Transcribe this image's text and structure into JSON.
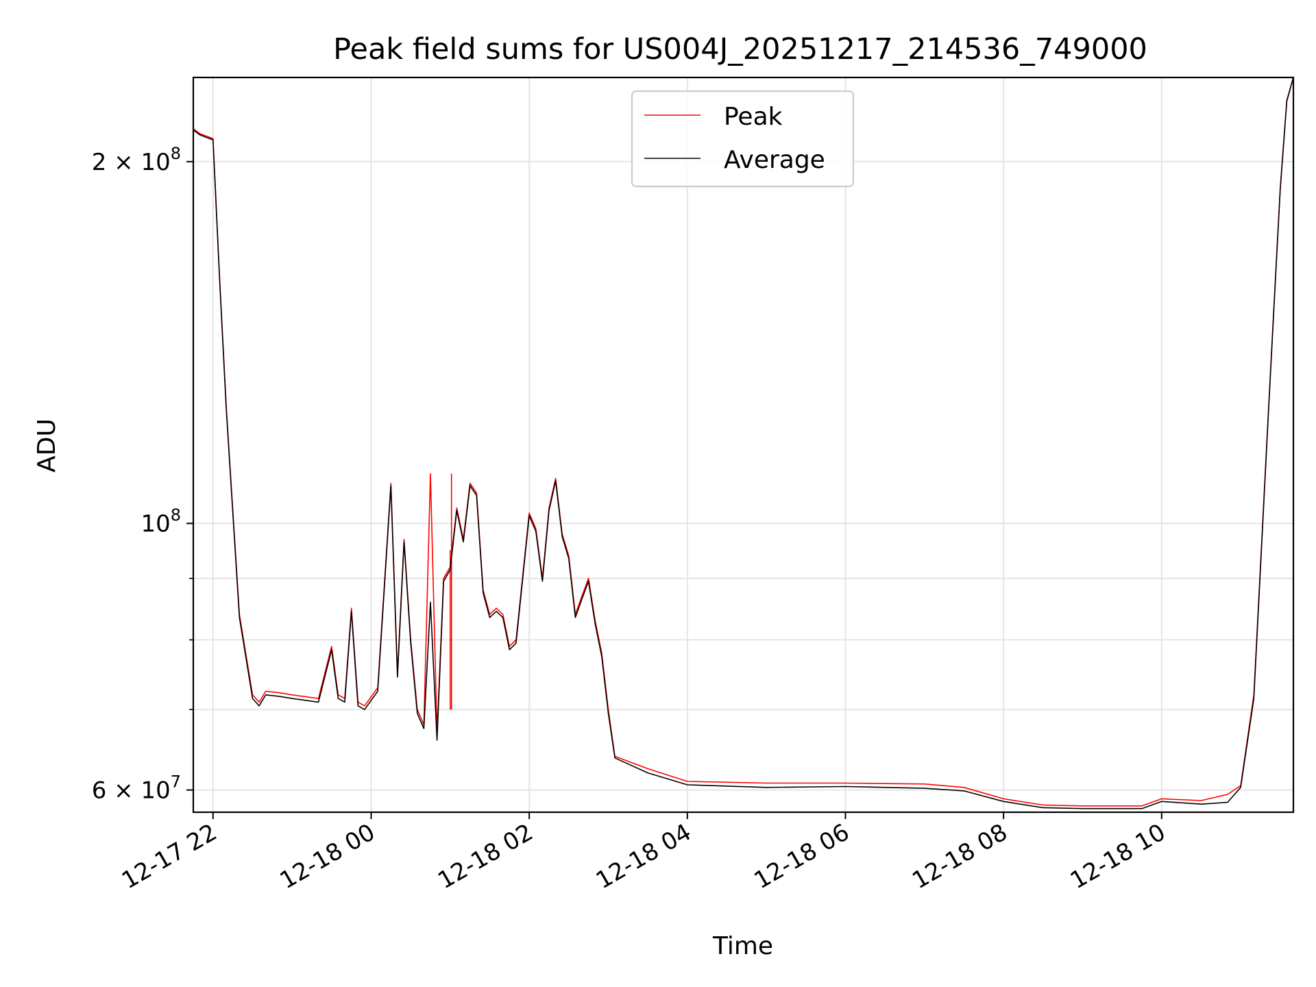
{
  "chart_data": {
    "type": "line",
    "title": "Peak field sums for US004J_20251217_214536_749000",
    "xlabel": "Time",
    "ylabel": "ADU",
    "yscale": "log",
    "ylim": [
      57500000,
      235000000
    ],
    "xlim_hours": [
      "12-17 21:45",
      "12-18 11:40"
    ],
    "grid": true,
    "legend_position": "upper-center",
    "x_ticks": [
      {
        "value": "2025-12-17 22:00",
        "label": "12-17 22"
      },
      {
        "value": "2025-12-18 00:00",
        "label": "12-18 00"
      },
      {
        "value": "2025-12-18 02:00",
        "label": "12-18 02"
      },
      {
        "value": "2025-12-18 04:00",
        "label": "12-18 04"
      },
      {
        "value": "2025-12-18 06:00",
        "label": "12-18 06"
      },
      {
        "value": "2025-12-18 08:00",
        "label": "12-18 08"
      },
      {
        "value": "2025-12-18 10:00",
        "label": "12-18 10"
      }
    ],
    "y_major_ticks": [
      {
        "value": 60000000,
        "base": "6 × 10",
        "exp": "7"
      },
      {
        "value": 100000000,
        "base": "10",
        "exp": "8"
      },
      {
        "value": 200000000,
        "base": "2 × 10",
        "exp": "8"
      }
    ],
    "y_minor_ticks": [
      70000000,
      80000000,
      90000000
    ],
    "series": [
      {
        "name": "Peak",
        "color": "#ff0000",
        "x": [
          "2025-12-17 21:45",
          "2025-12-17 21:50",
          "2025-12-17 22:00",
          "2025-12-17 22:05",
          "2025-12-17 22:10",
          "2025-12-17 22:20",
          "2025-12-17 22:30",
          "2025-12-17 22:35",
          "2025-12-17 22:40",
          "2025-12-17 22:50",
          "2025-12-17 23:00",
          "2025-12-17 23:20",
          "2025-12-17 23:30",
          "2025-12-17 23:35",
          "2025-12-17 23:40",
          "2025-12-17 23:45",
          "2025-12-17 23:50",
          "2025-12-17 23:55",
          "2025-12-18 00:05",
          "2025-12-18 00:15",
          "2025-12-18 00:20",
          "2025-12-18 00:25",
          "2025-12-18 00:30",
          "2025-12-18 00:35",
          "2025-12-18 00:40",
          "2025-12-18 00:45",
          "2025-12-18 00:50",
          "2025-12-18 00:55",
          "2025-12-18 01:00",
          "2025-12-18 01:05",
          "2025-12-18 01:10",
          "2025-12-18 01:15",
          "2025-12-18 01:20",
          "2025-12-18 01:25",
          "2025-12-18 01:30",
          "2025-12-18 01:35",
          "2025-12-18 01:40",
          "2025-12-18 01:45",
          "2025-12-18 01:50",
          "2025-12-18 02:00",
          "2025-12-18 02:05",
          "2025-12-18 02:10",
          "2025-12-18 02:15",
          "2025-12-18 02:20",
          "2025-12-18 02:25",
          "2025-12-18 02:30",
          "2025-12-18 02:35",
          "2025-12-18 02:40",
          "2025-12-18 02:45",
          "2025-12-18 02:50",
          "2025-12-18 02:55",
          "2025-12-18 03:00",
          "2025-12-18 03:05",
          "2025-12-18 03:30",
          "2025-12-18 04:00",
          "2025-12-18 05:00",
          "2025-12-18 06:00",
          "2025-12-18 07:00",
          "2025-12-18 07:30",
          "2025-12-18 08:00",
          "2025-12-18 08:30",
          "2025-12-18 09:00",
          "2025-12-18 09:45",
          "2025-12-18 10:00",
          "2025-12-18 10:30",
          "2025-12-18 10:50",
          "2025-12-18 11:00",
          "2025-12-18 11:10",
          "2025-12-18 11:20",
          "2025-12-18 11:25",
          "2025-12-18 11:30",
          "2025-12-18 11:35",
          "2025-12-18 11:40"
        ],
        "values": [
          213000000,
          211000000,
          209000000,
          160000000,
          125000000,
          84000000,
          72000000,
          71000000,
          72500000,
          72300000,
          72000000,
          71500000,
          79000000,
          72000000,
          71500000,
          85000000,
          71000000,
          70500000,
          73000000,
          108000000,
          75000000,
          97000000,
          80000000,
          70000000,
          68000000,
          110000000,
          67000000,
          90000000,
          92000000,
          103000000,
          97000000,
          108000000,
          106000000,
          88000000,
          84000000,
          85000000,
          84000000,
          79000000,
          80000000,
          102000000,
          99000000,
          90000000,
          103000000,
          109000000,
          98000000,
          94000000,
          84000000,
          87000000,
          90000000,
          83000000,
          78000000,
          70000000,
          64000000,
          62500000,
          61000000,
          60800000,
          60800000,
          60700000,
          60300000,
          59000000,
          58300000,
          58200000,
          58200000,
          59000000,
          58800000,
          59500000,
          60500000,
          72000000,
          118000000,
          150000000,
          190000000,
          225000000,
          235000000
        ],
        "spikes": [
          {
            "x": "2025-12-18 01:01",
            "value": 110000000
          },
          {
            "x": "2025-12-18 01:00",
            "value": 95000000
          }
        ]
      },
      {
        "name": "Average",
        "color": "#000000",
        "x": [
          "2025-12-17 21:45",
          "2025-12-17 21:50",
          "2025-12-17 22:00",
          "2025-12-17 22:05",
          "2025-12-17 22:10",
          "2025-12-17 22:20",
          "2025-12-17 22:30",
          "2025-12-17 22:35",
          "2025-12-17 22:40",
          "2025-12-17 22:50",
          "2025-12-17 23:00",
          "2025-12-17 23:20",
          "2025-12-17 23:30",
          "2025-12-17 23:35",
          "2025-12-17 23:40",
          "2025-12-17 23:45",
          "2025-12-17 23:50",
          "2025-12-17 23:55",
          "2025-12-18 00:05",
          "2025-12-18 00:15",
          "2025-12-18 00:20",
          "2025-12-18 00:25",
          "2025-12-18 00:30",
          "2025-12-18 00:35",
          "2025-12-18 00:40",
          "2025-12-18 00:45",
          "2025-12-18 00:50",
          "2025-12-18 00:55",
          "2025-12-18 01:00",
          "2025-12-18 01:05",
          "2025-12-18 01:10",
          "2025-12-18 01:15",
          "2025-12-18 01:20",
          "2025-12-18 01:25",
          "2025-12-18 01:30",
          "2025-12-18 01:35",
          "2025-12-18 01:40",
          "2025-12-18 01:45",
          "2025-12-18 01:50",
          "2025-12-18 02:00",
          "2025-12-18 02:05",
          "2025-12-18 02:10",
          "2025-12-18 02:15",
          "2025-12-18 02:20",
          "2025-12-18 02:25",
          "2025-12-18 02:30",
          "2025-12-18 02:35",
          "2025-12-18 02:40",
          "2025-12-18 02:45",
          "2025-12-18 02:50",
          "2025-12-18 02:55",
          "2025-12-18 03:00",
          "2025-12-18 03:05",
          "2025-12-18 03:30",
          "2025-12-18 04:00",
          "2025-12-18 05:00",
          "2025-12-18 06:00",
          "2025-12-18 07:00",
          "2025-12-18 07:30",
          "2025-12-18 08:00",
          "2025-12-18 08:30",
          "2025-12-18 09:00",
          "2025-12-18 09:45",
          "2025-12-18 10:00",
          "2025-12-18 10:30",
          "2025-12-18 10:50",
          "2025-12-18 11:00",
          "2025-12-18 11:10",
          "2025-12-18 11:20",
          "2025-12-18 11:25",
          "2025-12-18 11:30",
          "2025-12-18 11:35",
          "2025-12-18 11:40"
        ],
        "values": [
          212500000,
          210500000,
          208500000,
          159500000,
          124500000,
          83500000,
          71500000,
          70500000,
          72000000,
          71800000,
          71500000,
          71000000,
          78500000,
          71500000,
          71000000,
          84500000,
          70500000,
          70000000,
          72500000,
          107500000,
          74500000,
          96500000,
          79500000,
          69500000,
          67500000,
          86000000,
          66000000,
          89500000,
          91500000,
          102500000,
          96500000,
          107500000,
          105500000,
          87500000,
          83500000,
          84500000,
          83500000,
          78500000,
          79500000,
          101500000,
          98500000,
          89500000,
          102500000,
          108500000,
          97500000,
          93500000,
          83500000,
          86500000,
          89500000,
          82500000,
          77500000,
          69500000,
          63800000,
          62000000,
          60600000,
          60300000,
          60400000,
          60200000,
          59900000,
          58700000,
          58000000,
          57900000,
          57900000,
          58700000,
          58400000,
          58600000,
          60300000,
          71500000,
          117500000,
          149500000,
          189500000,
          224500000,
          235000000
        ]
      }
    ]
  }
}
